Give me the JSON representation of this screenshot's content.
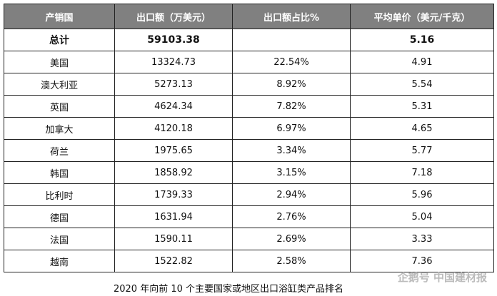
{
  "table": {
    "header": [
      "产销国",
      "出口额（万美元）",
      "出口额占比%",
      "平均单价（美元/千克）"
    ],
    "rows": [
      [
        "总计",
        "59103.38",
        null,
        "5.16"
      ],
      [
        "美国",
        "13324.73",
        "22.54%",
        "4.91"
      ],
      [
        "澳大利亚",
        "5273.13",
        "8.92%",
        "5.54"
      ],
      [
        "英国",
        "4624.34",
        "7.82%",
        "5.31"
      ],
      [
        "加拿大",
        "4120.18",
        "6.97%",
        "4.65"
      ],
      [
        "荷兰",
        "1975.65",
        "3.34%",
        "5.77"
      ],
      [
        "韩国",
        "1858.92",
        "3.15%",
        "7.18"
      ],
      [
        "比利时",
        "1739.33",
        "2.94%",
        "5.96"
      ],
      [
        "德国",
        "1631.94",
        "2.76%",
        "5.04"
      ],
      [
        "法国",
        "1590.11",
        "2.69%",
        "3.33"
      ],
      [
        "越南",
        "1522.82",
        "2.58%",
        "7.36"
      ]
    ]
  },
  "caption": "2020 年向前 10 个主要国家或地区出口浴缸类产品排名",
  "watermark": "企鹅号 中国建材报"
}
